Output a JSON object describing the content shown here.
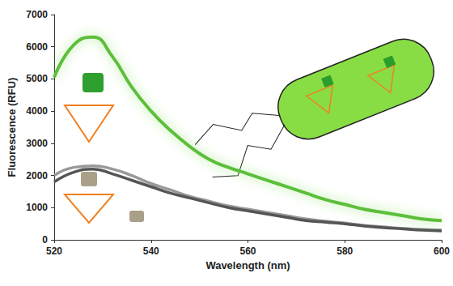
{
  "chart_data": {
    "type": "line",
    "x_label": "Wavelength (nm)",
    "y_label": "Fluorescence (RFU)",
    "x": [
      520,
      524,
      528,
      532,
      536,
      540,
      544,
      548,
      552,
      556,
      560,
      564,
      568,
      572,
      576,
      580,
      584,
      588,
      592,
      596,
      600
    ],
    "series": [
      {
        "color": "#999999",
        "values": [
          2000,
          2250,
          2300,
          2200,
          2000,
          1750,
          1550,
          1350,
          1200,
          1050,
          950,
          850,
          750,
          650,
          580,
          520,
          450,
          400,
          350,
          320,
          300
        ]
      },
      {
        "color": "#555555",
        "values": [
          1800,
          2100,
          2200,
          2050,
          1850,
          1650,
          1450,
          1300,
          1150,
          1000,
          900,
          800,
          700,
          600,
          550,
          500,
          430,
          380,
          340,
          300,
          280
        ]
      },
      {
        "color": "#5cbf3a",
        "values": [
          5050,
          6050,
          6300,
          5700,
          4750,
          4000,
          3400,
          2900,
          2500,
          2250,
          2050,
          1850,
          1650,
          1450,
          1250,
          1100,
          950,
          850,
          750,
          650,
          600
        ]
      }
    ],
    "xlim": [
      520,
      600
    ],
    "xticks": [
      520,
      540,
      560,
      580,
      600
    ],
    "ylim": [
      0,
      7000
    ],
    "yticks": [
      0,
      1000,
      2000,
      3000,
      4000,
      5000,
      6000,
      7000
    ],
    "grid": false
  }
}
